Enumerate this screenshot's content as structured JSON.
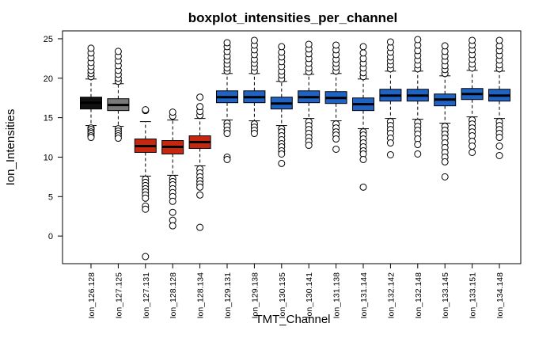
{
  "chart_data": {
    "type": "boxplot",
    "title": "boxplot_intensities_per_channel",
    "xlabel": "TMT_Channel",
    "ylabel": "Ion_Intensities",
    "ylim": [
      -3.5,
      26
    ],
    "yticks": [
      0,
      5,
      10,
      15,
      20,
      25
    ],
    "grid": false,
    "legend": "none",
    "categories": [
      "Ion_126.128",
      "Ion_127.125",
      "Ion_127.131",
      "Ion_128.128",
      "Ion_128.134",
      "Ion_129.131",
      "Ion_129.138",
      "Ion_130.135",
      "Ion_130.141",
      "Ion_131.138",
      "Ion_131.144",
      "Ion_132.142",
      "Ion_132.148",
      "Ion_133.145",
      "Ion_133.151",
      "Ion_134.148"
    ],
    "boxes": [
      {
        "q1": 16.1,
        "median": 16.9,
        "q3": 17.6,
        "whisker_low": 14.0,
        "whisker_high": 19.9,
        "outliers_low": [
          13.7,
          13.5,
          13.2,
          13.0,
          12.7,
          12.5
        ],
        "outliers_high": [
          20.2,
          20.6,
          21.0,
          21.5,
          22.0,
          22.6,
          23.2,
          23.8
        ],
        "color": "#111111"
      },
      {
        "q1": 15.9,
        "median": 16.6,
        "q3": 17.4,
        "whisker_low": 13.9,
        "whisker_high": 19.3,
        "outliers_low": [
          13.6,
          13.3,
          13.0,
          12.7,
          12.4
        ],
        "outliers_high": [
          19.6,
          20.0,
          20.5,
          21.0,
          21.6,
          22.2,
          22.8,
          23.4
        ],
        "color": "#7a7a7a"
      },
      {
        "q1": 10.6,
        "median": 11.4,
        "q3": 12.3,
        "whisker_low": 7.6,
        "whisker_high": 14.5,
        "outliers_low": [
          7.2,
          6.8,
          6.4,
          6.0,
          5.6,
          5.2,
          4.8,
          3.8,
          3.4,
          -2.6
        ],
        "outliers_high": [
          15.9,
          16.0
        ],
        "color": "#c8270f"
      },
      {
        "q1": 10.4,
        "median": 11.3,
        "q3": 12.1,
        "whisker_low": 7.7,
        "whisker_high": 14.7,
        "outliers_low": [
          7.3,
          6.9,
          6.5,
          6.0,
          5.5,
          5.0,
          4.4,
          3.0,
          2.0,
          1.3
        ],
        "outliers_high": [
          15.2,
          15.7
        ],
        "color": "#c8270f"
      },
      {
        "q1": 11.1,
        "median": 11.9,
        "q3": 12.7,
        "whisker_low": 8.9,
        "whisker_high": 14.9,
        "outliers_low": [
          8.5,
          8.0,
          7.5,
          7.0,
          6.6,
          6.2,
          5.2,
          1.1
        ],
        "outliers_high": [
          15.3,
          15.8,
          16.4,
          17.6
        ],
        "color": "#c8270f"
      },
      {
        "q1": 16.9,
        "median": 17.6,
        "q3": 18.4,
        "whisker_low": 14.7,
        "whisker_high": 20.6,
        "outliers_low": [
          14.3,
          13.9,
          13.4,
          13.0,
          10.0,
          9.7
        ],
        "outliers_high": [
          20.9,
          21.3,
          21.8,
          22.3,
          22.8,
          23.4,
          24.0,
          24.5
        ],
        "color": "#1f63c4"
      },
      {
        "q1": 16.9,
        "median": 17.6,
        "q3": 18.4,
        "whisker_low": 14.6,
        "whisker_high": 20.6,
        "outliers_low": [
          14.2,
          13.8,
          13.4,
          13.0
        ],
        "outliers_high": [
          20.9,
          21.4,
          21.9,
          22.4,
          23.0,
          23.6,
          24.2,
          24.8
        ],
        "color": "#1f63c4"
      },
      {
        "q1": 16.1,
        "median": 16.8,
        "q3": 17.6,
        "whisker_low": 14.0,
        "whisker_high": 19.6,
        "outliers_low": [
          13.6,
          13.2,
          12.7,
          12.2,
          11.7,
          11.3,
          10.8,
          10.4,
          9.2
        ],
        "outliers_high": [
          19.9,
          20.4,
          20.9,
          21.5,
          22.1,
          22.7,
          23.3,
          24.0
        ],
        "color": "#1f63c4"
      },
      {
        "q1": 16.9,
        "median": 17.6,
        "q3": 18.4,
        "whisker_low": 14.9,
        "whisker_high": 20.5,
        "outliers_low": [
          14.5,
          14.0,
          13.5,
          13.0,
          12.5,
          12.0,
          11.5
        ],
        "outliers_high": [
          20.8,
          21.3,
          21.9,
          22.5,
          23.1,
          23.7,
          24.3
        ],
        "color": "#1f63c4"
      },
      {
        "q1": 16.8,
        "median": 17.5,
        "q3": 18.3,
        "whisker_low": 14.6,
        "whisker_high": 20.6,
        "outliers_low": [
          14.2,
          13.7,
          13.2,
          12.8,
          12.3,
          11.0
        ],
        "outliers_high": [
          20.9,
          21.4,
          21.9,
          22.4,
          23.0,
          23.6,
          24.2
        ],
        "color": "#1f63c4"
      },
      {
        "q1": 15.9,
        "median": 16.7,
        "q3": 17.5,
        "whisker_low": 13.6,
        "whisker_high": 19.9,
        "outliers_low": [
          13.2,
          12.8,
          12.3,
          11.8,
          11.3,
          10.8,
          10.4,
          9.7,
          6.2
        ],
        "outliers_high": [
          20.2,
          20.7,
          21.3,
          21.9,
          22.5,
          23.2,
          24.0
        ],
        "color": "#1f63c4"
      },
      {
        "q1": 17.1,
        "median": 17.8,
        "q3": 18.6,
        "whisker_low": 14.9,
        "whisker_high": 20.9,
        "outliers_low": [
          14.5,
          14.0,
          13.5,
          13.0,
          12.4,
          11.8,
          10.3
        ],
        "outliers_high": [
          21.2,
          21.7,
          22.2,
          22.7,
          23.3,
          23.9,
          24.6
        ],
        "color": "#1f63c4"
      },
      {
        "q1": 17.1,
        "median": 17.8,
        "q3": 18.6,
        "whisker_low": 14.8,
        "whisker_high": 20.9,
        "outliers_low": [
          14.4,
          13.9,
          13.4,
          12.9,
          12.3,
          11.6,
          10.4
        ],
        "outliers_high": [
          21.2,
          21.7,
          22.3,
          22.9,
          23.5,
          24.2,
          24.9
        ],
        "color": "#1f63c4"
      },
      {
        "q1": 16.5,
        "median": 17.3,
        "q3": 18.0,
        "whisker_low": 14.3,
        "whisker_high": 20.3,
        "outliers_low": [
          13.9,
          13.4,
          12.9,
          12.4,
          11.8,
          11.2,
          10.6,
          10.0,
          9.4,
          7.5
        ],
        "outliers_high": [
          20.6,
          21.1,
          21.6,
          22.2,
          22.8,
          23.4,
          24.1
        ],
        "color": "#1f63c4"
      },
      {
        "q1": 17.3,
        "median": 18.0,
        "q3": 18.7,
        "whisker_low": 15.1,
        "whisker_high": 21.0,
        "outliers_low": [
          14.7,
          14.2,
          13.7,
          13.2,
          12.7,
          12.0,
          11.4,
          10.6
        ],
        "outliers_high": [
          21.3,
          21.8,
          22.4,
          23.0,
          23.6,
          24.2,
          24.8
        ],
        "color": "#1f63c4"
      },
      {
        "q1": 17.1,
        "median": 17.8,
        "q3": 18.6,
        "whisker_low": 14.9,
        "whisker_high": 20.9,
        "outliers_low": [
          14.5,
          14.0,
          13.5,
          13.0,
          12.5,
          11.4,
          10.2
        ],
        "outliers_high": [
          21.2,
          21.7,
          22.3,
          22.9,
          23.5,
          24.1,
          24.8
        ],
        "color": "#1f63c4"
      }
    ]
  }
}
